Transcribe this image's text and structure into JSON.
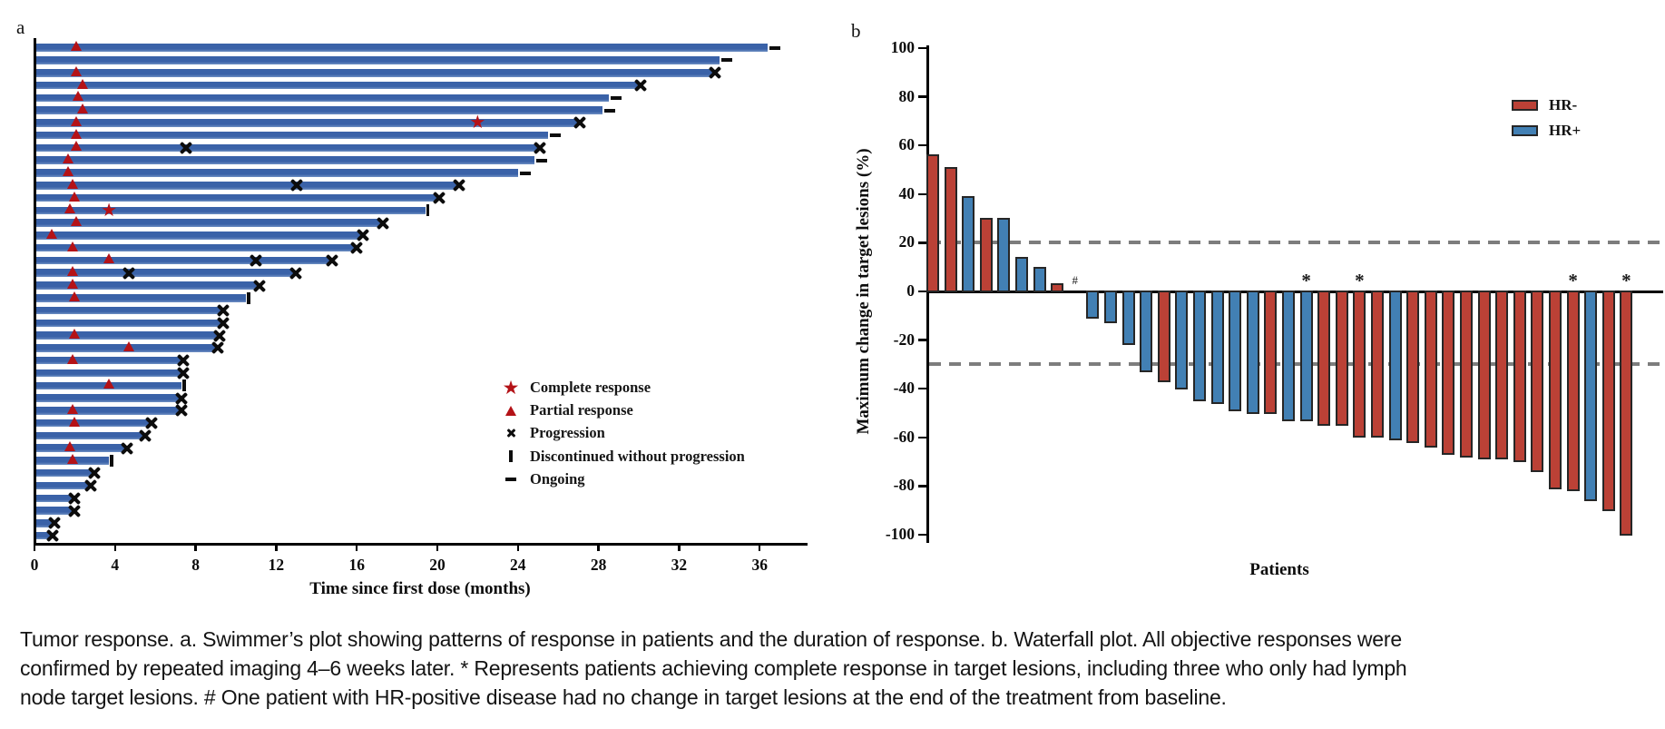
{
  "figure": {
    "caption_lines": [
      "Tumor response. a. Swimmer’s plot showing patterns of response in patients and the duration of response. b. Waterfall plot. All objective responses were",
      "confirmed by repeated imaging 4–6 weeks later. * Represents patients achieving complete response in target lesions, including three who only had lymph",
      "node target lesions. # One patient with HR-positive disease had no change in target lesions at the end of the treatment from baseline."
    ]
  },
  "chart_data": [
    {
      "id": "swimmer-plot",
      "type": "bar",
      "orientation": "horizontal",
      "panel_label": "a",
      "xlabel": "Time since first dose (months)",
      "xlim": [
        0,
        38.5
      ],
      "x_ticks": [
        0,
        4,
        8,
        12,
        16,
        20,
        24,
        28,
        32,
        36
      ],
      "bar_color": "#3a62a8",
      "bar_color_light": "#6f90c3",
      "marker_color": "#b41217",
      "progression_color": "#0c0c0c",
      "legend": [
        {
          "marker": "star",
          "label": "Complete response"
        },
        {
          "marker": "triangle",
          "label": "Partial response"
        },
        {
          "marker": "x",
          "label": "Progression"
        },
        {
          "marker": "vbar",
          "label": "Discontinued without progression"
        },
        {
          "marker": "dash",
          "label": "Ongoing"
        }
      ],
      "patients": [
        {
          "months": 36.4,
          "end": "ongoing",
          "partial_response": 2.1
        },
        {
          "months": 34.0,
          "end": "ongoing"
        },
        {
          "months": 33.7,
          "end": "progression",
          "partial_response": 2.1
        },
        {
          "months": 30.0,
          "end": "progression",
          "partial_response": 2.4
        },
        {
          "months": 28.5,
          "end": "ongoing",
          "partial_response": 2.2
        },
        {
          "months": 28.2,
          "end": "ongoing",
          "partial_response": 2.4
        },
        {
          "months": 27.0,
          "end": "progression",
          "partial_response": 2.1,
          "complete_response": 22.0
        },
        {
          "months": 25.5,
          "end": "ongoing",
          "partial_response": 2.1
        },
        {
          "months": 25.0,
          "end": "progression",
          "partial_response": 2.1,
          "progression_events": [
            7.5
          ]
        },
        {
          "months": 24.8,
          "end": "ongoing",
          "partial_response": 1.7
        },
        {
          "months": 24.0,
          "end": "ongoing",
          "partial_response": 1.7
        },
        {
          "months": 21.0,
          "end": "progression",
          "partial_response": 1.9,
          "progression_events": [
            13.0
          ]
        },
        {
          "months": 20.0,
          "end": "progression",
          "partial_response": 2.0
        },
        {
          "months": 19.4,
          "end": "discontinued",
          "partial_response": 1.8,
          "complete_response": 3.7
        },
        {
          "months": 17.2,
          "end": "progression",
          "partial_response": 2.1
        },
        {
          "months": 16.2,
          "end": "progression",
          "partial_response": 0.9
        },
        {
          "months": 15.9,
          "end": "progression",
          "partial_response": 1.9
        },
        {
          "months": 14.7,
          "end": "progression",
          "partial_response": 3.7,
          "progression_events": [
            11.0
          ]
        },
        {
          "months": 12.9,
          "end": "progression",
          "partial_response": 1.9,
          "progression_events": [
            4.7
          ]
        },
        {
          "months": 11.1,
          "end": "progression",
          "partial_response": 1.9
        },
        {
          "months": 10.5,
          "end": "discontinued",
          "partial_response": 2.0
        },
        {
          "months": 9.3,
          "end": "progression"
        },
        {
          "months": 9.3,
          "end": "progression"
        },
        {
          "months": 9.1,
          "end": "progression",
          "partial_response": 2.0
        },
        {
          "months": 9.0,
          "end": "progression",
          "partial_response": 4.7
        },
        {
          "months": 7.3,
          "end": "progression",
          "partial_response": 1.9
        },
        {
          "months": 7.3,
          "end": "progression"
        },
        {
          "months": 7.3,
          "end": "discontinued",
          "partial_response": 3.7
        },
        {
          "months": 7.2,
          "end": "progression"
        },
        {
          "months": 7.2,
          "end": "progression",
          "partial_response": 1.9
        },
        {
          "months": 5.7,
          "end": "progression",
          "partial_response": 2.0
        },
        {
          "months": 5.4,
          "end": "progression"
        },
        {
          "months": 4.5,
          "end": "progression",
          "partial_response": 1.8
        },
        {
          "months": 3.7,
          "end": "discontinued",
          "partial_response": 1.9
        },
        {
          "months": 2.9,
          "end": "progression"
        },
        {
          "months": 2.7,
          "end": "progression"
        },
        {
          "months": 1.9,
          "end": "progression"
        },
        {
          "months": 1.9,
          "end": "progression"
        },
        {
          "months": 0.9,
          "end": "progression"
        },
        {
          "months": 0.8,
          "end": "progression"
        }
      ]
    },
    {
      "id": "waterfall-plot",
      "type": "bar",
      "panel_label": "b",
      "xlabel": "Patients",
      "ylabel": "Maximum change in target lesions (%)",
      "ylim": [
        -100,
        100
      ],
      "y_ticks": [
        100,
        80,
        60,
        40,
        20,
        0,
        -20,
        -40,
        -60,
        -80,
        -100
      ],
      "reference_lines": {
        "values": [
          20,
          -30
        ],
        "color": "#7d7d7d",
        "style": "dashed"
      },
      "bar_border_color": "#262626",
      "legend": [
        {
          "label": "HR-",
          "color": "#bb4136"
        },
        {
          "label": "HR+",
          "color": "#4280b4"
        }
      ],
      "patients": [
        {
          "value": 56,
          "group": "HR-"
        },
        {
          "value": 51,
          "group": "HR-"
        },
        {
          "value": 39,
          "group": "HR+"
        },
        {
          "value": 30,
          "group": "HR-"
        },
        {
          "value": 30,
          "group": "HR+"
        },
        {
          "value": 14,
          "group": "HR+"
        },
        {
          "value": 10,
          "group": "HR+"
        },
        {
          "value": 3,
          "group": "HR-"
        },
        {
          "value": 0,
          "group": "HR+",
          "flag": "#"
        },
        {
          "value": -11,
          "group": "HR+"
        },
        {
          "value": -13,
          "group": "HR+"
        },
        {
          "value": -22,
          "group": "HR+"
        },
        {
          "value": -33,
          "group": "HR+"
        },
        {
          "value": -37,
          "group": "HR-"
        },
        {
          "value": -40,
          "group": "HR+"
        },
        {
          "value": -45,
          "group": "HR+"
        },
        {
          "value": -46,
          "group": "HR+"
        },
        {
          "value": -49,
          "group": "HR+"
        },
        {
          "value": -50,
          "group": "HR+"
        },
        {
          "value": -50,
          "group": "HR-"
        },
        {
          "value": -53,
          "group": "HR+"
        },
        {
          "value": -53,
          "group": "HR+",
          "flag": "*"
        },
        {
          "value": -55,
          "group": "HR-"
        },
        {
          "value": -55,
          "group": "HR-"
        },
        {
          "value": -60,
          "group": "HR-",
          "flag": "*"
        },
        {
          "value": -60,
          "group": "HR-"
        },
        {
          "value": -61,
          "group": "HR+"
        },
        {
          "value": -62,
          "group": "HR-"
        },
        {
          "value": -64,
          "group": "HR-"
        },
        {
          "value": -67,
          "group": "HR-"
        },
        {
          "value": -68,
          "group": "HR-"
        },
        {
          "value": -69,
          "group": "HR-"
        },
        {
          "value": -69,
          "group": "HR-"
        },
        {
          "value": -70,
          "group": "HR-"
        },
        {
          "value": -74,
          "group": "HR-"
        },
        {
          "value": -81,
          "group": "HR-"
        },
        {
          "value": -82,
          "group": "HR-",
          "flag": "*"
        },
        {
          "value": -86,
          "group": "HR+"
        },
        {
          "value": -90,
          "group": "HR-"
        },
        {
          "value": -100,
          "group": "HR-",
          "flag": "*"
        }
      ]
    }
  ]
}
